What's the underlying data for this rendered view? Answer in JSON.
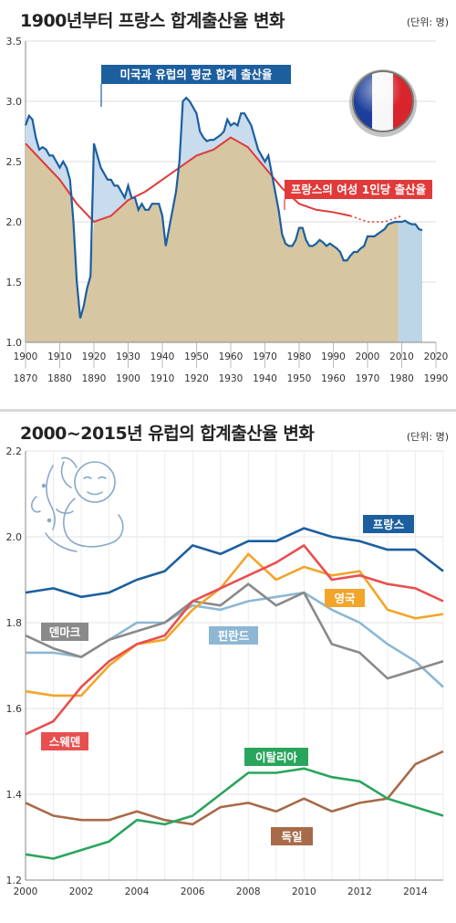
{
  "chart_data": [
    {
      "type": "area",
      "title": "1900년부터 프랑스 합계출산율 변화",
      "unit": "(단위: 명)",
      "xlim": [
        1900,
        2020
      ],
      "ylim": [
        1.0,
        3.5
      ],
      "yticks": [
        "1.0",
        "1.5",
        "2.0",
        "2.5",
        "3.0",
        "3.5"
      ],
      "xticks_top": [
        "1900",
        "1910",
        "1920",
        "1930",
        "1940",
        "1950",
        "1960",
        "1970",
        "1980",
        "1990",
        "2000",
        "2010",
        "2020"
      ],
      "xticks_bottom": [
        "1870",
        "1880",
        "1890",
        "1900",
        "1910",
        "1920",
        "1930",
        "1940",
        "1950",
        "1960",
        "1970",
        "1980",
        "1990"
      ],
      "series": [
        {
          "name": "미국과 유럽의 평균 합계 출산율",
          "color": "#1c5f9f",
          "x": [
            1900,
            1901,
            1902,
            1903,
            1904,
            1905,
            1906,
            1907,
            1908,
            1909,
            1910,
            1911,
            1912,
            1913,
            1914,
            1915,
            1916,
            1917,
            1918,
            1919,
            1920,
            1921,
            1922,
            1923,
            1924,
            1925,
            1926,
            1927,
            1928,
            1929,
            1930,
            1931,
            1932,
            1933,
            1934,
            1935,
            1936,
            1937,
            1938,
            1939,
            1940,
            1941,
            1942,
            1943,
            1944,
            1945,
            1946,
            1947,
            1948,
            1949,
            1950,
            1951,
            1952,
            1953,
            1954,
            1955,
            1956,
            1957,
            1958,
            1959,
            1960,
            1961,
            1962,
            1963,
            1964,
            1965,
            1966,
            1967,
            1968,
            1969,
            1970,
            1971,
            1972,
            1973,
            1974,
            1975,
            1976,
            1977,
            1978,
            1979,
            1980,
            1981,
            1982,
            1983,
            1984,
            1985,
            1986,
            1987,
            1988,
            1989,
            1990,
            1991,
            1992,
            1993,
            1994,
            1995,
            1996,
            1997,
            1998,
            1999,
            2000,
            2001,
            2002,
            2003,
            2004,
            2005,
            2006,
            2007,
            2008,
            2009,
            2010,
            2011,
            2012,
            2013,
            2014,
            2015,
            2016
          ],
          "values": [
            2.8,
            2.88,
            2.85,
            2.7,
            2.6,
            2.62,
            2.6,
            2.55,
            2.55,
            2.5,
            2.45,
            2.5,
            2.45,
            2.35,
            2.0,
            1.5,
            1.2,
            1.3,
            1.45,
            1.55,
            2.65,
            2.55,
            2.45,
            2.4,
            2.35,
            2.35,
            2.3,
            2.3,
            2.25,
            2.2,
            2.3,
            2.2,
            2.2,
            2.1,
            2.15,
            2.1,
            2.1,
            2.15,
            2.15,
            2.15,
            2.05,
            1.8,
            1.95,
            2.1,
            2.25,
            2.5,
            3.0,
            3.03,
            3.0,
            2.95,
            2.9,
            2.75,
            2.7,
            2.67,
            2.68,
            2.68,
            2.7,
            2.72,
            2.75,
            2.85,
            2.8,
            2.82,
            2.8,
            2.9,
            2.9,
            2.85,
            2.8,
            2.7,
            2.6,
            2.55,
            2.5,
            2.55,
            2.4,
            2.25,
            2.1,
            1.9,
            1.82,
            1.8,
            1.8,
            1.85,
            1.95,
            1.95,
            1.85,
            1.8,
            1.8,
            1.82,
            1.85,
            1.83,
            1.8,
            1.82,
            1.8,
            1.78,
            1.75,
            1.68,
            1.68,
            1.72,
            1.75,
            1.75,
            1.78,
            1.8,
            1.88,
            1.88,
            1.88,
            1.9,
            1.92,
            1.94,
            1.98,
            1.99,
            2.0,
            2.0,
            2.0,
            2.01,
            1.99,
            1.98,
            1.98,
            1.94,
            1.93
          ]
        },
        {
          "name": "프랑스의 여성 1인당 출산율",
          "color": "#e03a3a",
          "x": [
            1900,
            1905,
            1910,
            1915,
            1920,
            1925,
            1930,
            1935,
            1940,
            1945,
            1950,
            1955,
            1960,
            1965,
            1970,
            1975,
            1980,
            1985,
            1990,
            1995,
            2000,
            2005,
            2010
          ],
          "values": [
            2.65,
            2.5,
            2.35,
            2.15,
            2.0,
            2.05,
            2.18,
            2.25,
            2.35,
            2.45,
            2.55,
            2.6,
            2.7,
            2.62,
            2.45,
            2.28,
            2.15,
            2.1,
            2.08,
            2.05,
            2.0,
            2.0,
            2.05
          ],
          "dotted_from_x": 1995
        }
      ],
      "annotations": [
        {
          "text": "미국과 유럽의 평균 합계 출산율",
          "color": "#1c5f9f"
        },
        {
          "text": "프랑스의 여성 1인당 출산율",
          "color": "#e03a3a"
        }
      ]
    },
    {
      "type": "line",
      "title": "2000~2015년 유럽의 합계출산율 변화",
      "unit": "(단위: 명)",
      "xlim": [
        2000,
        2015
      ],
      "ylim": [
        1.2,
        2.2
      ],
      "yticks": [
        "1.2",
        "1.4",
        "1.6",
        "1.8",
        "2.0",
        "2.2"
      ],
      "xticks": [
        "2000",
        "2002",
        "2004",
        "2006",
        "2008",
        "2010",
        "2012",
        "2014"
      ],
      "x": [
        2000,
        2001,
        2002,
        2003,
        2004,
        2005,
        2006,
        2007,
        2008,
        2009,
        2010,
        2011,
        2012,
        2013,
        2014,
        2015
      ],
      "series": [
        {
          "name": "프랑스",
          "color": "#1c5f9f",
          "values": [
            1.87,
            1.88,
            1.86,
            1.87,
            1.9,
            1.92,
            1.98,
            1.96,
            1.99,
            1.99,
            2.02,
            2.0,
            1.99,
            1.97,
            1.97,
            1.92
          ]
        },
        {
          "name": "영국",
          "color": "#f2a52a",
          "values": [
            1.64,
            1.63,
            1.63,
            1.7,
            1.75,
            1.76,
            1.83,
            1.88,
            1.96,
            1.9,
            1.93,
            1.91,
            1.92,
            1.83,
            1.81,
            1.82
          ]
        },
        {
          "name": "덴마크",
          "color": "#8a8a8a",
          "values": [
            1.77,
            1.74,
            1.72,
            1.76,
            1.78,
            1.8,
            1.85,
            1.84,
            1.89,
            1.84,
            1.87,
            1.75,
            1.73,
            1.67,
            1.69,
            1.71
          ]
        },
        {
          "name": "핀란드",
          "color": "#8db7d4",
          "values": [
            1.73,
            1.73,
            1.72,
            1.76,
            1.8,
            1.8,
            1.84,
            1.83,
            1.85,
            1.86,
            1.87,
            1.83,
            1.8,
            1.75,
            1.71,
            1.65
          ]
        },
        {
          "name": "스웨덴",
          "color": "#e84f4f",
          "values": [
            1.54,
            1.57,
            1.65,
            1.71,
            1.75,
            1.77,
            1.85,
            1.88,
            1.91,
            1.94,
            1.98,
            1.9,
            1.91,
            1.89,
            1.88,
            1.85
          ]
        },
        {
          "name": "이탈리아",
          "color": "#2aa55c",
          "values": [
            1.26,
            1.25,
            1.27,
            1.29,
            1.34,
            1.33,
            1.35,
            1.4,
            1.45,
            1.45,
            1.46,
            1.44,
            1.43,
            1.39,
            1.37,
            1.35
          ]
        },
        {
          "name": "독일",
          "color": "#a86a48",
          "values": [
            1.38,
            1.35,
            1.34,
            1.34,
            1.36,
            1.34,
            1.33,
            1.37,
            1.38,
            1.36,
            1.39,
            1.36,
            1.38,
            1.39,
            1.47,
            1.5
          ]
        }
      ]
    }
  ]
}
